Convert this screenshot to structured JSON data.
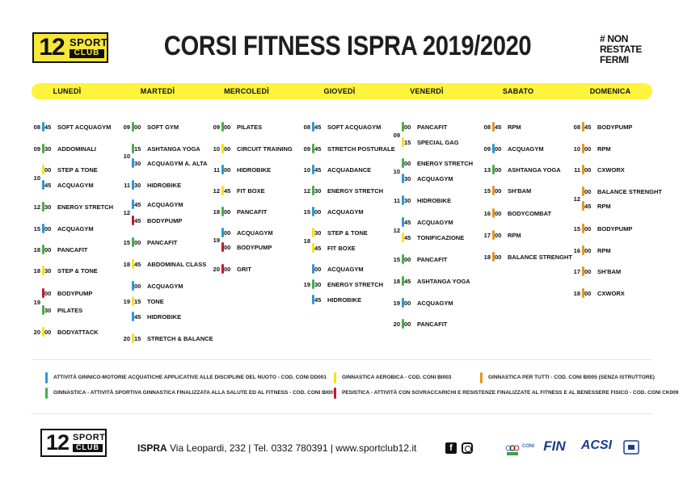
{
  "logo": {
    "number": "12",
    "word1": "SPORT",
    "word2": "CLUB"
  },
  "title": "CORSI FITNESS ISPRA 2019/2020",
  "slogan": {
    "line1": "# NON",
    "line2": "RESTATE",
    "line3": "FERMI"
  },
  "colors": {
    "blue": "#2a9ad6",
    "green": "#48ae4a",
    "yellow": "#f7e21a",
    "red": "#c6172e",
    "orange": "#e49521",
    "day_bar": "#fff33b"
  },
  "days": [
    "Lunedì",
    "Martedì",
    "Mercoledì",
    "Giovedì",
    "Venerdì",
    "Sabato",
    "Domenica"
  ],
  "schedule": [
    {
      "day": "Lunedì",
      "classes": [
        {
          "hour": "08",
          "min": "45",
          "name": "SOFT ACQUAGYM",
          "color": "blue"
        },
        {
          "hour": "09",
          "min": "30",
          "name": "ADDOMINALI",
          "color": "green"
        },
        {
          "hour": "10",
          "min": "00",
          "name": "STEP & TONE",
          "color": "yellow"
        },
        {
          "hour": "",
          "min": "45",
          "name": "ACQUAGYM",
          "color": "blue"
        },
        {
          "hour": "12",
          "min": "30",
          "name": "ENERGY STRETCH",
          "color": "green"
        },
        {
          "hour": "15",
          "min": "00",
          "name": "ACQUAGYM",
          "color": "blue"
        },
        {
          "hour": "18",
          "min": "00",
          "name": "PANCAFIT",
          "color": "green"
        },
        {
          "hour": "18",
          "min": "30",
          "name": "STEP & TONE",
          "color": "yellow"
        },
        {
          "hour": "19",
          "min": "00",
          "name": "BODYPUMP",
          "color": "red"
        },
        {
          "hour": "",
          "min": "30",
          "name": "PILATES",
          "color": "green"
        },
        {
          "hour": "20",
          "min": "00",
          "name": "BODYATTACK",
          "color": "yellow"
        }
      ]
    },
    {
      "day": "Martedì",
      "classes": [
        {
          "hour": "09",
          "min": "00",
          "name": "SOFT GYM",
          "color": "green"
        },
        {
          "hour": "10",
          "min": "15",
          "name": "ASHTANGA YOGA",
          "color": "green"
        },
        {
          "hour": "",
          "min": "30",
          "name": "ACQUAGYM A. ALTA",
          "color": "blue"
        },
        {
          "hour": "11",
          "min": "30",
          "name": "HIDROBIKE",
          "color": "blue"
        },
        {
          "hour": "12",
          "min": "45",
          "name": "ACQUAGYM",
          "color": "blue"
        },
        {
          "hour": "",
          "min": "45",
          "name": "BODYPUMP",
          "color": "red"
        },
        {
          "hour": "15",
          "min": "00",
          "name": "PANCAFIT",
          "color": "green"
        },
        {
          "hour": "18",
          "min": "45",
          "name": "ABDOMINAL CLASS",
          "color": "yellow"
        },
        {
          "hour": "19",
          "min": "00",
          "name": "ACQUAGYM",
          "color": "blue"
        },
        {
          "hour": "",
          "min": "15",
          "name": "TONE",
          "color": "yellow"
        },
        {
          "hour": "",
          "min": "45",
          "name": "HIDROBIKE",
          "color": "blue"
        },
        {
          "hour": "20",
          "min": "15",
          "name": "STRETCH & BALANCE",
          "color": "yellow"
        }
      ]
    },
    {
      "day": "Mercoledì",
      "classes": [
        {
          "hour": "09",
          "min": "00",
          "name": "PILATES",
          "color": "green"
        },
        {
          "hour": "10",
          "min": "00",
          "name": "CIRCUIT TRAINING",
          "color": "yellow"
        },
        {
          "hour": "11",
          "min": "00",
          "name": "HIDROBIKE",
          "color": "blue"
        },
        {
          "hour": "12",
          "min": "45",
          "name": "FIT BOXE",
          "color": "yellow"
        },
        {
          "hour": "18",
          "min": "00",
          "name": "PANCAFIT",
          "color": "green"
        },
        {
          "hour": "19",
          "min": "00",
          "name": "ACQUAGYM",
          "color": "blue"
        },
        {
          "hour": "",
          "min": "00",
          "name": "BODYPUMP",
          "color": "red"
        },
        {
          "hour": "20",
          "min": "00",
          "name": "GRIT",
          "color": "red"
        }
      ]
    },
    {
      "day": "Giovedì",
      "classes": [
        {
          "hour": "08",
          "min": "45",
          "name": "SOFT ACQUAGYM",
          "color": "blue"
        },
        {
          "hour": "09",
          "min": "45",
          "name": "STRETCH POSTURALE",
          "color": "green"
        },
        {
          "hour": "10",
          "min": "45",
          "name": "ACQUADANCE",
          "color": "blue"
        },
        {
          "hour": "12",
          "min": "30",
          "name": "ENERGY STRETCH",
          "color": "green"
        },
        {
          "hour": "15",
          "min": "00",
          "name": "ACQUAGYM",
          "color": "blue"
        },
        {
          "hour": "18",
          "min": "30",
          "name": "STEP & TONE",
          "color": "yellow"
        },
        {
          "hour": "",
          "min": "45",
          "name": "FIT BOXE",
          "color": "yellow"
        },
        {
          "hour": "19",
          "min": "00",
          "name": "ACQUAGYM",
          "color": "blue"
        },
        {
          "hour": "",
          "min": "30",
          "name": "ENERGY STRETCH",
          "color": "green"
        },
        {
          "hour": "",
          "min": "45",
          "name": "HIDROBIKE",
          "color": "blue"
        }
      ]
    },
    {
      "day": "Venerdì",
      "classes": [
        {
          "hour": "09",
          "min": "00",
          "name": "PANCAFIT",
          "color": "green"
        },
        {
          "hour": "",
          "min": "15",
          "name": "SPECIAL GAG",
          "color": "yellow"
        },
        {
          "hour": "10",
          "min": "00",
          "name": "ENERGY STRETCH",
          "color": "green"
        },
        {
          "hour": "",
          "min": "30",
          "name": "ACQUAGYM",
          "color": "blue"
        },
        {
          "hour": "11",
          "min": "30",
          "name": "HIDROBIKE",
          "color": "blue"
        },
        {
          "hour": "12",
          "min": "45",
          "name": "ACQUAGYM",
          "color": "blue"
        },
        {
          "hour": "",
          "min": "45",
          "name": "TONIFICAZIONE",
          "color": "yellow"
        },
        {
          "hour": "15",
          "min": "00",
          "name": "PANCAFIT",
          "color": "green"
        },
        {
          "hour": "18",
          "min": "45",
          "name": "ASHTANGA YOGA",
          "color": "green"
        },
        {
          "hour": "19",
          "min": "00",
          "name": "ACQUAGYM",
          "color": "blue"
        },
        {
          "hour": "20",
          "min": "00",
          "name": "PANCAFIT",
          "color": "green"
        }
      ]
    },
    {
      "day": "Sabato",
      "classes": [
        {
          "hour": "08",
          "min": "45",
          "name": "RPM",
          "color": "orange"
        },
        {
          "hour": "09",
          "min": "00",
          "name": "ACQUAGYM",
          "color": "blue"
        },
        {
          "hour": "13",
          "min": "00",
          "name": "ASHTANGA YOGA",
          "color": "green"
        },
        {
          "hour": "15",
          "min": "00",
          "name": "SH'BAM",
          "color": "orange"
        },
        {
          "hour": "16",
          "min": "00",
          "name": "BODYCOMBAT",
          "color": "orange"
        },
        {
          "hour": "17",
          "min": "00",
          "name": "RPM",
          "color": "orange"
        },
        {
          "hour": "18",
          "min": "00",
          "name": "BALANCE STRENGHT",
          "color": "orange"
        }
      ]
    },
    {
      "day": "Domenica",
      "classes": [
        {
          "hour": "08",
          "min": "45",
          "name": "BODYPUMP",
          "color": "orange"
        },
        {
          "hour": "10",
          "min": "00",
          "name": "RPM",
          "color": "orange"
        },
        {
          "hour": "11",
          "min": "00",
          "name": "CXWORX",
          "color": "orange"
        },
        {
          "hour": "12",
          "min": "00",
          "name": "BALANCE STRENGHT",
          "color": "orange"
        },
        {
          "hour": "",
          "min": "45",
          "name": "RPM",
          "color": "orange"
        },
        {
          "hour": "15",
          "min": "00",
          "name": "BODYPUMP",
          "color": "orange"
        },
        {
          "hour": "16",
          "min": "00",
          "name": "RPM",
          "color": "orange"
        },
        {
          "hour": "17",
          "min": "00",
          "name": "SH'BAM",
          "color": "orange"
        },
        {
          "hour": "18",
          "min": "00",
          "name": "CXWORX",
          "color": "orange"
        }
      ]
    }
  ],
  "legend": [
    {
      "color": "blue",
      "text": "ATTIVITÀ GINNICO-MOTORIE ACQUATICHE APPLICATIVE ALLE DISCIPLINE DEL NUOTO - COD. CONI DD001"
    },
    {
      "color": "green",
      "text": "GINNASTICA - ATTIVITÀ SPORTIVA GINNASTICA FINALIZZATA ALLA SALUTE ED AL FITNESS - COD. CONI BI001"
    },
    {
      "color": "yellow",
      "text": "GINNASTICA AEROBICA - COD. CONI BI003"
    },
    {
      "color": "red",
      "text": "PESISTICA - ATTIVITÀ CON SOVRACCARICHI E RESISTENZE FINALIZZATE AL FITNESS E AL BENESSERE FISICO - COD. CONI CK009"
    },
    {
      "color": "orange",
      "text": "GINNASTICA PER TUTTI - COD. CONI BI005 (SENZA ISTRUTTORE)"
    }
  ],
  "footer": {
    "city": "ISPRA",
    "address": " Via Leopardi, 232 | Tel. 0332 780391 | www.sportclub12.it",
    "facebook_icon": "facebook-icon",
    "instagram_icon": "instagram-icon"
  },
  "sponsors": {
    "coni": "CONI",
    "fin": "FIN",
    "acsi": "ACSI"
  }
}
